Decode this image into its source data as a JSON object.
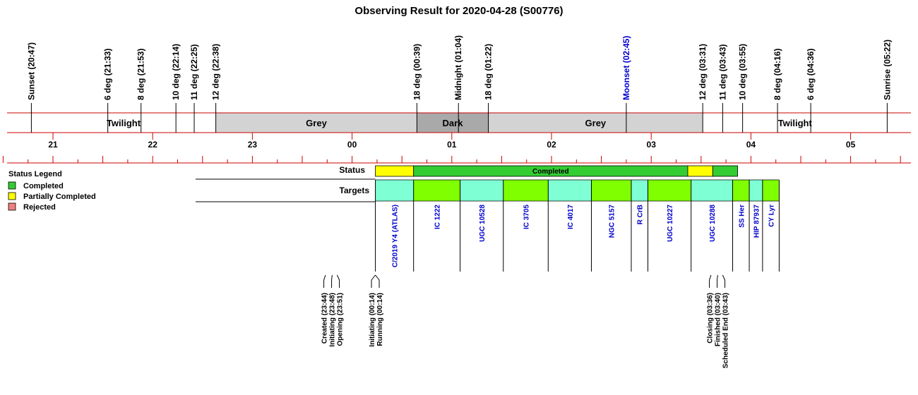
{
  "chart_data": {
    "type": "timeline",
    "title": "Observing Result for 2020-04-28 (S00776)",
    "time_axis": {
      "start": "20:30",
      "end": "05:35",
      "hour_ticks": [
        "21",
        "22",
        "23",
        "00",
        "01",
        "02",
        "03",
        "04",
        "05"
      ]
    },
    "sky_markers": [
      {
        "label": "Sunset (20:47)",
        "time": "20:47",
        "color": "#000000"
      },
      {
        "label": "6 deg (21:33)",
        "time": "21:33",
        "color": "#000000"
      },
      {
        "label": "8 deg (21:53)",
        "time": "21:53",
        "color": "#000000"
      },
      {
        "label": "10 deg (22:14)",
        "time": "22:14",
        "color": "#000000"
      },
      {
        "label": "11 deg (22:25)",
        "time": "22:25",
        "color": "#000000"
      },
      {
        "label": "12 deg (22:38)",
        "time": "22:38",
        "color": "#000000"
      },
      {
        "label": "18 deg (00:39)",
        "time": "00:39",
        "color": "#000000"
      },
      {
        "label": "Midnight (01:04)",
        "time": "01:04",
        "color": "#000000"
      },
      {
        "label": "18 deg (01:22)",
        "time": "01:22",
        "color": "#000000"
      },
      {
        "label": "Moonset (02:45)",
        "time": "02:45",
        "color": "#0000cc"
      },
      {
        "label": "12 deg (03:31)",
        "time": "03:31",
        "color": "#000000"
      },
      {
        "label": "11 deg (03:43)",
        "time": "03:43",
        "color": "#000000"
      },
      {
        "label": "10 deg (03:55)",
        "time": "03:55",
        "color": "#000000"
      },
      {
        "label": "8 deg (04:16)",
        "time": "04:16",
        "color": "#000000"
      },
      {
        "label": "6 deg (04:36)",
        "time": "04:36",
        "color": "#000000"
      },
      {
        "label": "Sunrise (05:22)",
        "time": "05:22",
        "color": "#000000"
      }
    ],
    "sky_bands": [
      {
        "label": "Twilight",
        "start": "20:47",
        "end": "22:38",
        "color": "#ffffff"
      },
      {
        "label": "Grey",
        "start": "22:38",
        "end": "00:39",
        "color": "#d3d3d3"
      },
      {
        "label": "Dark",
        "start": "00:39",
        "end": "01:22",
        "color": "#a9a9a9"
      },
      {
        "label": "Grey",
        "start": "01:22",
        "end": "03:31",
        "color": "#d3d3d3"
      },
      {
        "label": "Twilight",
        "start": "03:31",
        "end": "05:22",
        "color": "#ffffff"
      }
    ],
    "status_row": {
      "label": "Status",
      "segments": [
        {
          "start": "00:14",
          "end": "00:37",
          "status": "Partially Completed",
          "text": ""
        },
        {
          "start": "00:37",
          "end": "03:22",
          "status": "Completed",
          "text": "Completed"
        },
        {
          "start": "03:22",
          "end": "03:37",
          "status": "Partially Completed",
          "text": ""
        },
        {
          "start": "03:37",
          "end": "03:52",
          "status": "Completed",
          "text": ""
        }
      ]
    },
    "targets_row": {
      "label": "Targets",
      "targets": [
        {
          "name": "C/2019 Y4 (ATLAS)",
          "start": "00:14",
          "end": "00:37",
          "color": "#7fffd4"
        },
        {
          "name": "IC 1222",
          "start": "00:37",
          "end": "01:05",
          "color": "#7fff00"
        },
        {
          "name": "UGC 10528",
          "start": "01:05",
          "end": "01:31",
          "color": "#7fffd4"
        },
        {
          "name": "IC 3705",
          "start": "01:31",
          "end": "01:58",
          "color": "#7fff00"
        },
        {
          "name": "IC 4017",
          "start": "01:58",
          "end": "02:24",
          "color": "#7fffd4"
        },
        {
          "name": "NGC 5157",
          "start": "02:24",
          "end": "02:48",
          "color": "#7fff00"
        },
        {
          "name": "R CrB",
          "start": "02:48",
          "end": "02:58",
          "color": "#7fffd4"
        },
        {
          "name": "UGC 10227",
          "start": "02:58",
          "end": "03:24",
          "color": "#7fff00"
        },
        {
          "name": "UGC 10288",
          "start": "03:24",
          "end": "03:49",
          "color": "#7fffd4"
        },
        {
          "name": "SS Her",
          "start": "03:49",
          "end": "03:59",
          "color": "#7fff00"
        },
        {
          "name": "HIP 87937",
          "start": "03:59",
          "end": "04:07",
          "color": "#7fffd4"
        },
        {
          "name": "CY Lyr",
          "start": "04:07",
          "end": "04:17",
          "color": "#7fff00"
        }
      ]
    },
    "events": [
      {
        "label": "Created (23:44)",
        "time": "23:44"
      },
      {
        "label": "Initiating (23:48)",
        "time": "23:48"
      },
      {
        "label": "Opening (23:51)",
        "time": "23:51"
      },
      {
        "label": "Initiating (00:14)",
        "time": "00:14"
      },
      {
        "label": "Running (00:14)",
        "time": "00:14"
      },
      {
        "label": "Closing (03:36)",
        "time": "03:36"
      },
      {
        "label": "Finished (03:40)",
        "time": "03:40"
      },
      {
        "label": "Scheduled End (03:43)",
        "time": "03:43"
      }
    ],
    "legend": {
      "title": "Status Legend",
      "entries": [
        {
          "label": "Completed",
          "color": "#33cc33"
        },
        {
          "label": "Partially Completed",
          "color": "#ffff00"
        },
        {
          "label": "Rejected",
          "color": "#f08080"
        }
      ]
    },
    "status_colors": {
      "Completed": "#33cc33",
      "Partially Completed": "#ffff00"
    },
    "accent_color": "#cc0000"
  }
}
